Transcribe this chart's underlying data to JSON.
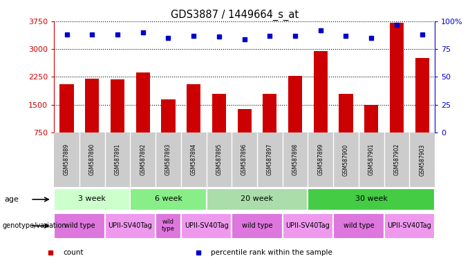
{
  "title": "GDS3887 / 1449664_s_at",
  "samples": [
    "GSM587889",
    "GSM587890",
    "GSM587891",
    "GSM587892",
    "GSM587893",
    "GSM587894",
    "GSM587895",
    "GSM587896",
    "GSM587897",
    "GSM587898",
    "GSM587899",
    "GSM587900",
    "GSM587901",
    "GSM587902",
    "GSM587903"
  ],
  "counts": [
    2050,
    2200,
    2175,
    2375,
    1650,
    2050,
    1800,
    1380,
    1800,
    2275,
    2950,
    1800,
    1500,
    3700,
    2750
  ],
  "percentile_ranks": [
    88,
    88,
    88,
    90,
    85,
    87,
    86,
    84,
    87,
    87,
    92,
    87,
    85,
    97,
    88
  ],
  "ylim_left": [
    750,
    3750
  ],
  "ylim_right": [
    0,
    100
  ],
  "yticks_left": [
    750,
    1500,
    2250,
    3000,
    3750
  ],
  "yticks_right": [
    0,
    25,
    50,
    75,
    100
  ],
  "bar_color": "#cc0000",
  "dot_color": "#0000cc",
  "age_groups": [
    {
      "label": "3 week",
      "start": 0,
      "end": 3,
      "color": "#ccffcc"
    },
    {
      "label": "6 week",
      "start": 3,
      "end": 6,
      "color": "#88ee88"
    },
    {
      "label": "20 week",
      "start": 6,
      "end": 10,
      "color": "#aaddaa"
    },
    {
      "label": "30 week",
      "start": 10,
      "end": 15,
      "color": "#44cc44"
    }
  ],
  "genotype_groups": [
    {
      "label": "wild type",
      "start": 0,
      "end": 2,
      "color": "#dd77dd"
    },
    {
      "label": "UPII-SV40Tag",
      "start": 2,
      "end": 4,
      "color": "#ee99ee"
    },
    {
      "label": "wild\ntype",
      "start": 4,
      "end": 5,
      "color": "#dd77dd"
    },
    {
      "label": "UPII-SV40Tag",
      "start": 5,
      "end": 7,
      "color": "#ee99ee"
    },
    {
      "label": "wild type",
      "start": 7,
      "end": 9,
      "color": "#dd77dd"
    },
    {
      "label": "UPII-SV40Tag",
      "start": 9,
      "end": 11,
      "color": "#ee99ee"
    },
    {
      "label": "wild type",
      "start": 11,
      "end": 13,
      "color": "#dd77dd"
    },
    {
      "label": "UPII-SV40Tag",
      "start": 13,
      "end": 15,
      "color": "#ee99ee"
    }
  ],
  "legend_items": [
    {
      "label": "count",
      "color": "#cc0000"
    },
    {
      "label": "percentile rank within the sample",
      "color": "#0000cc"
    }
  ],
  "background_color": "#ffffff",
  "left_axis_color": "#cc0000",
  "right_axis_color": "#0000cc",
  "tick_area_color": "#cccccc",
  "fig_width": 6.8,
  "fig_height": 3.84
}
